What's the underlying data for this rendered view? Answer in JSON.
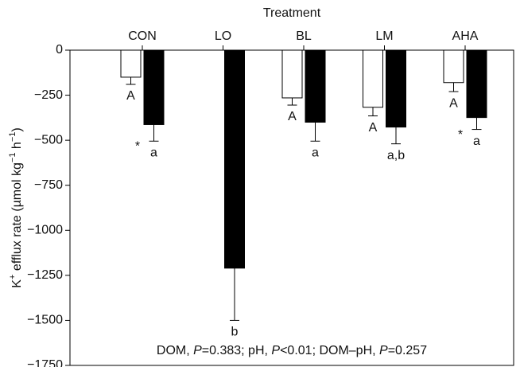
{
  "chart_data": {
    "type": "bar",
    "x_label": "Treatment",
    "y_label": [
      "K",
      "+",
      " efflux rate (µmol kg",
      "−1",
      " h",
      "−1",
      ")"
    ],
    "categories": [
      "CON",
      "LO",
      "BL",
      "LM",
      "AHA"
    ],
    "series": [
      {
        "color": "#ffffff",
        "values": [
          -150,
          null,
          -265,
          -317,
          -180
        ],
        "errors": [
          40,
          null,
          40,
          48,
          50
        ],
        "letters": [
          "A",
          null,
          "A",
          "A",
          "A"
        ]
      },
      {
        "color": "#000000",
        "values": [
          -413,
          -1210,
          -400,
          -427,
          -374
        ],
        "errors": [
          92,
          290,
          105,
          93,
          66
        ],
        "letters": [
          "a",
          "b",
          "a",
          "a,b",
          "a"
        ],
        "stars": [
          "*",
          null,
          null,
          null,
          "*"
        ]
      }
    ],
    "ylim": [
      -1750,
      0
    ],
    "yticks": [
      0,
      {
        "value": -250,
        "label": "−250"
      },
      {
        "value": -500,
        "label": "−500"
      },
      {
        "value": -750,
        "label": "−750"
      },
      {
        "value": -1000,
        "label": "−1000"
      },
      {
        "value": -1250,
        "label": "−1250"
      },
      {
        "value": -1500,
        "label": "−1500"
      },
      {
        "value": -1750,
        "label": "−1750"
      }
    ],
    "note": [
      "DOM, ",
      "P",
      "=0.383; pH, ",
      "P",
      "<0.01; DOM–pH, ",
      "P",
      "=0.257"
    ]
  }
}
